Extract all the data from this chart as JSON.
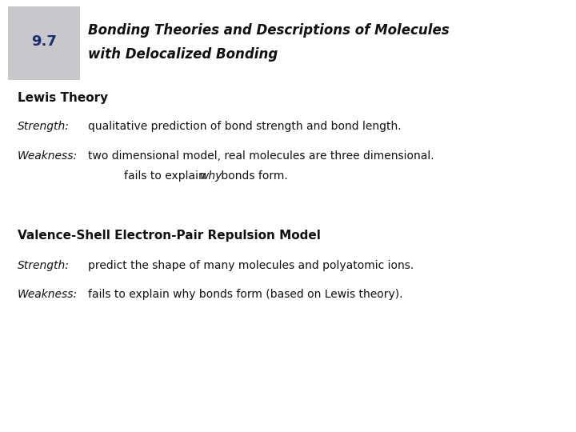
{
  "bg_color": "#ffffff",
  "header_box_color": "#c8c8cc",
  "header_box_gradient_top": "#e8e8ea",
  "header_number": "9.7",
  "header_number_color": "#1a2d6b",
  "header_title_line1": "Bonding Theories and Descriptions of Molecules",
  "header_title_line2": "with Delocalized Bonding",
  "header_title_color": "#111111",
  "section1_heading": "Lewis Theory",
  "section1_s_label": "Strength:",
  "section1_s_text": "qualitative prediction of bond strength and bond length.",
  "section1_w_label": "Weakness:",
  "section1_w_text1": "two dimensional model, real molecules are three dimensional.",
  "section1_w2_pre": "fails to explain ",
  "section1_w2_why": "why",
  "section1_w2_post": " bonds form.",
  "section2_heading": "Valence-Shell Electron-Pair Repulsion Model",
  "section2_s_label": "Strength:",
  "section2_s_text": "predict the shape of many molecules and polyatomic ions.",
  "section2_w_label": "Weakness:",
  "section2_w_text": "fails to explain why bonds form (based on Lewis theory).",
  "text_color": "#111111",
  "header_num_fontsize": 13,
  "header_title_fontsize": 12,
  "heading_fontsize": 11,
  "body_fontsize": 10
}
